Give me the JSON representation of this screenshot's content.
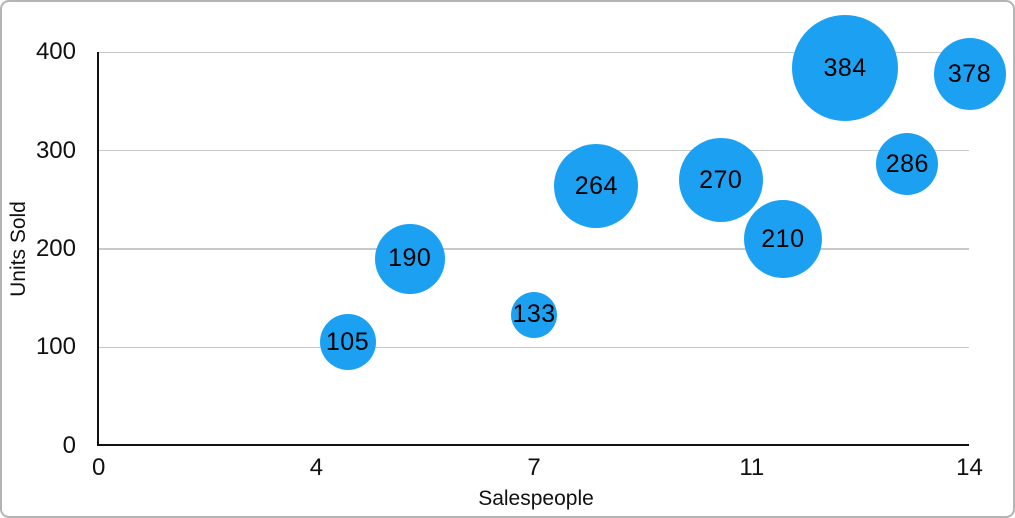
{
  "chart_data": {
    "type": "scatter",
    "variant": "bubble",
    "title": "",
    "xlabel": "Salespeople",
    "ylabel": "Units Sold",
    "xlim": [
      0,
      14
    ],
    "ylim": [
      0,
      400
    ],
    "grid": true,
    "legend": false,
    "x_ticks": [
      {
        "value": 0,
        "label": "0"
      },
      {
        "value": 3.5,
        "label": "4"
      },
      {
        "value": 7,
        "label": "7"
      },
      {
        "value": 10.5,
        "label": "11"
      },
      {
        "value": 14,
        "label": "14"
      }
    ],
    "y_ticks": [
      {
        "value": 0,
        "label": "0"
      },
      {
        "value": 100,
        "label": "100"
      },
      {
        "value": 200,
        "label": "200"
      },
      {
        "value": 300,
        "label": "300"
      },
      {
        "value": 400,
        "label": "400"
      }
    ],
    "points": [
      {
        "x": 4,
        "y": 105,
        "label": "105",
        "radius_px": 28
      },
      {
        "x": 5,
        "y": 190,
        "label": "190",
        "radius_px": 35
      },
      {
        "x": 7,
        "y": 133,
        "label": "133",
        "radius_px": 23
      },
      {
        "x": 8,
        "y": 264,
        "label": "264",
        "radius_px": 42
      },
      {
        "x": 10,
        "y": 270,
        "label": "270",
        "radius_px": 42
      },
      {
        "x": 11,
        "y": 210,
        "label": "210",
        "radius_px": 39
      },
      {
        "x": 12,
        "y": 384,
        "label": "384",
        "radius_px": 53
      },
      {
        "x": 13,
        "y": 286,
        "label": "286",
        "radius_px": 31
      },
      {
        "x": 14,
        "y": 378,
        "label": "378",
        "radius_px": 36
      }
    ],
    "colors": {
      "bubble_fill": "#1CA1F2",
      "bubble_label": "#000000",
      "axis_line": "#111111",
      "gridline": "#C9C9C9",
      "tick_text": "#111111",
      "frame_border": "#B4B4B4",
      "background": "#FFFFFF"
    }
  }
}
